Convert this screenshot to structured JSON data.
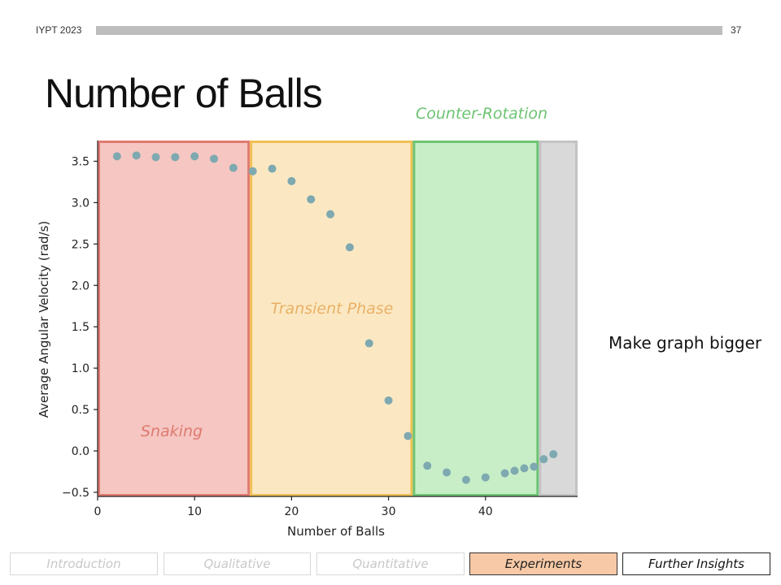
{
  "header": {
    "left_text": "IYPT 2023",
    "page_number": "37"
  },
  "slide_title": "Number of Balls",
  "note": "Make graph bigger",
  "nav": {
    "items": [
      {
        "label": "Introduction",
        "state": "inactive"
      },
      {
        "label": "Qualitative",
        "state": "inactive"
      },
      {
        "label": "Quantitative",
        "state": "inactive"
      },
      {
        "label": "Experiments",
        "state": "active"
      },
      {
        "label": "Further Insights",
        "state": "outlined"
      }
    ]
  },
  "chart_data": {
    "type": "scatter",
    "title": "",
    "xlabel": "Number of Balls",
    "ylabel": "Average Angular Velocity (rad/s)",
    "xlim": [
      0,
      49.5
    ],
    "ylim": [
      -0.55,
      3.75
    ],
    "xticks": [
      0,
      10,
      20,
      30,
      40
    ],
    "yticks": [
      -0.5,
      0.0,
      0.5,
      1.0,
      1.5,
      2.0,
      2.5,
      3.0,
      3.5
    ],
    "ytick_labels": [
      "−0.5",
      "0.0",
      "0.5",
      "1.0",
      "1.5",
      "2.0",
      "2.5",
      "3.0",
      "3.5"
    ],
    "grid": false,
    "series": [
      {
        "point_color": "#7ea9b0",
        "x": [
          2,
          4,
          6,
          8,
          10,
          12,
          14,
          16,
          18,
          20,
          22,
          24,
          26,
          28,
          30,
          32,
          34,
          36,
          38,
          40,
          42,
          43,
          44,
          45,
          46,
          47
        ],
        "y": [
          3.56,
          3.57,
          3.55,
          3.55,
          3.56,
          3.53,
          3.42,
          3.38,
          3.41,
          3.26,
          3.04,
          2.86,
          2.46,
          1.3,
          0.61,
          0.18,
          -0.18,
          -0.26,
          -0.35,
          -0.32,
          -0.27,
          -0.24,
          -0.21,
          -0.19,
          -0.1,
          -0.04
        ]
      }
    ],
    "regions": [
      {
        "label": "Snaking",
        "x_range": [
          0,
          15.7
        ],
        "fill": "#f5c6c2",
        "stroke": "#e07a70",
        "label_color": "#e07a70"
      },
      {
        "label": "Transient Phase",
        "x_range": [
          15.7,
          32.5
        ],
        "fill": "#fbe8c3",
        "stroke": "#f0c055",
        "label_color": "#eab065"
      },
      {
        "label": "Counter-Rotation",
        "x_range": [
          32.5,
          45.5
        ],
        "fill": "#c8eec8",
        "stroke": "#6cc472",
        "label_color": "#6cc472"
      },
      {
        "label": "",
        "x_range": [
          45.5,
          49.5
        ],
        "fill": "#d9d9d9",
        "stroke": "#c3c3c3",
        "label_color": "#999999"
      }
    ]
  }
}
